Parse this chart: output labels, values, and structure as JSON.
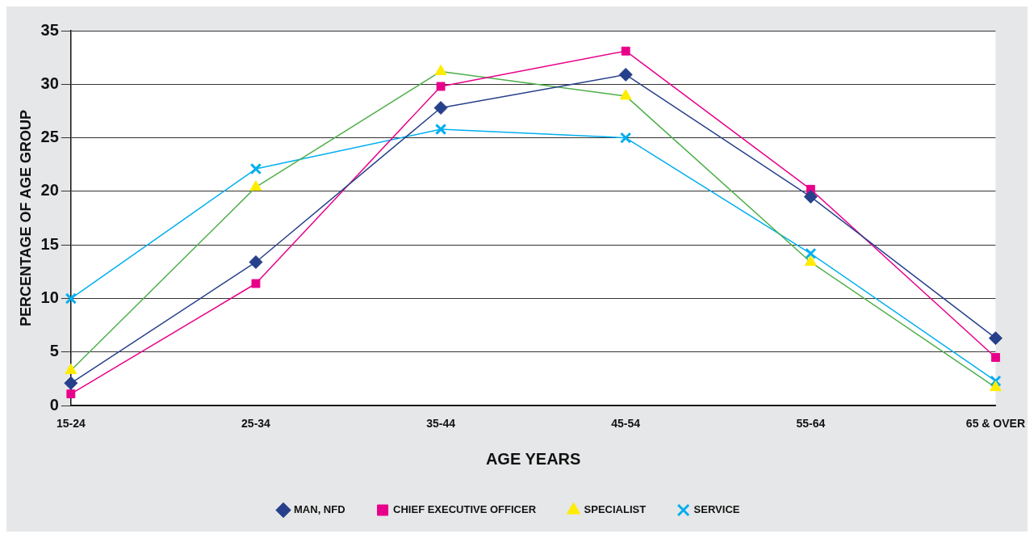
{
  "chart_data": {
    "type": "line",
    "xlabel": "AGE YEARS",
    "ylabel": "PERCENTAGE OF AGE GROUP",
    "categories": [
      "15-24",
      "25-34",
      "35-44",
      "45-54",
      "55-64",
      "65 & OVER"
    ],
    "series": [
      {
        "name": "MAN, NFD",
        "color": "#27408b",
        "marker": "diamond",
        "values": [
          2.1,
          13.4,
          27.8,
          30.9,
          19.5,
          6.3
        ]
      },
      {
        "name": "CHIEF EXECUTIVE OFFICER",
        "color": "#e8008a",
        "marker": "square",
        "values": [
          1.1,
          11.4,
          29.8,
          33.1,
          20.2,
          4.5
        ]
      },
      {
        "name": "SPECIALIST",
        "color": "#4daf4a",
        "colors": [
          "#ffec00",
          "#ffec00",
          "#ffec00",
          "#ffec00",
          "#ffec00",
          "#ffec00"
        ],
        "marker": "triangle",
        "values": [
          3.3,
          20.4,
          31.2,
          28.9,
          13.4,
          1.7
        ]
      },
      {
        "name": "SERVICE",
        "color": "#00aeef",
        "marker": "cross",
        "values": [
          10.0,
          22.1,
          25.8,
          25.0,
          14.2,
          2.3
        ]
      }
    ],
    "ylim": [
      0,
      35
    ],
    "yticks": [
      0,
      5,
      10,
      15,
      20,
      25,
      30,
      35
    ],
    "grid": "y",
    "legend": "bottom"
  }
}
